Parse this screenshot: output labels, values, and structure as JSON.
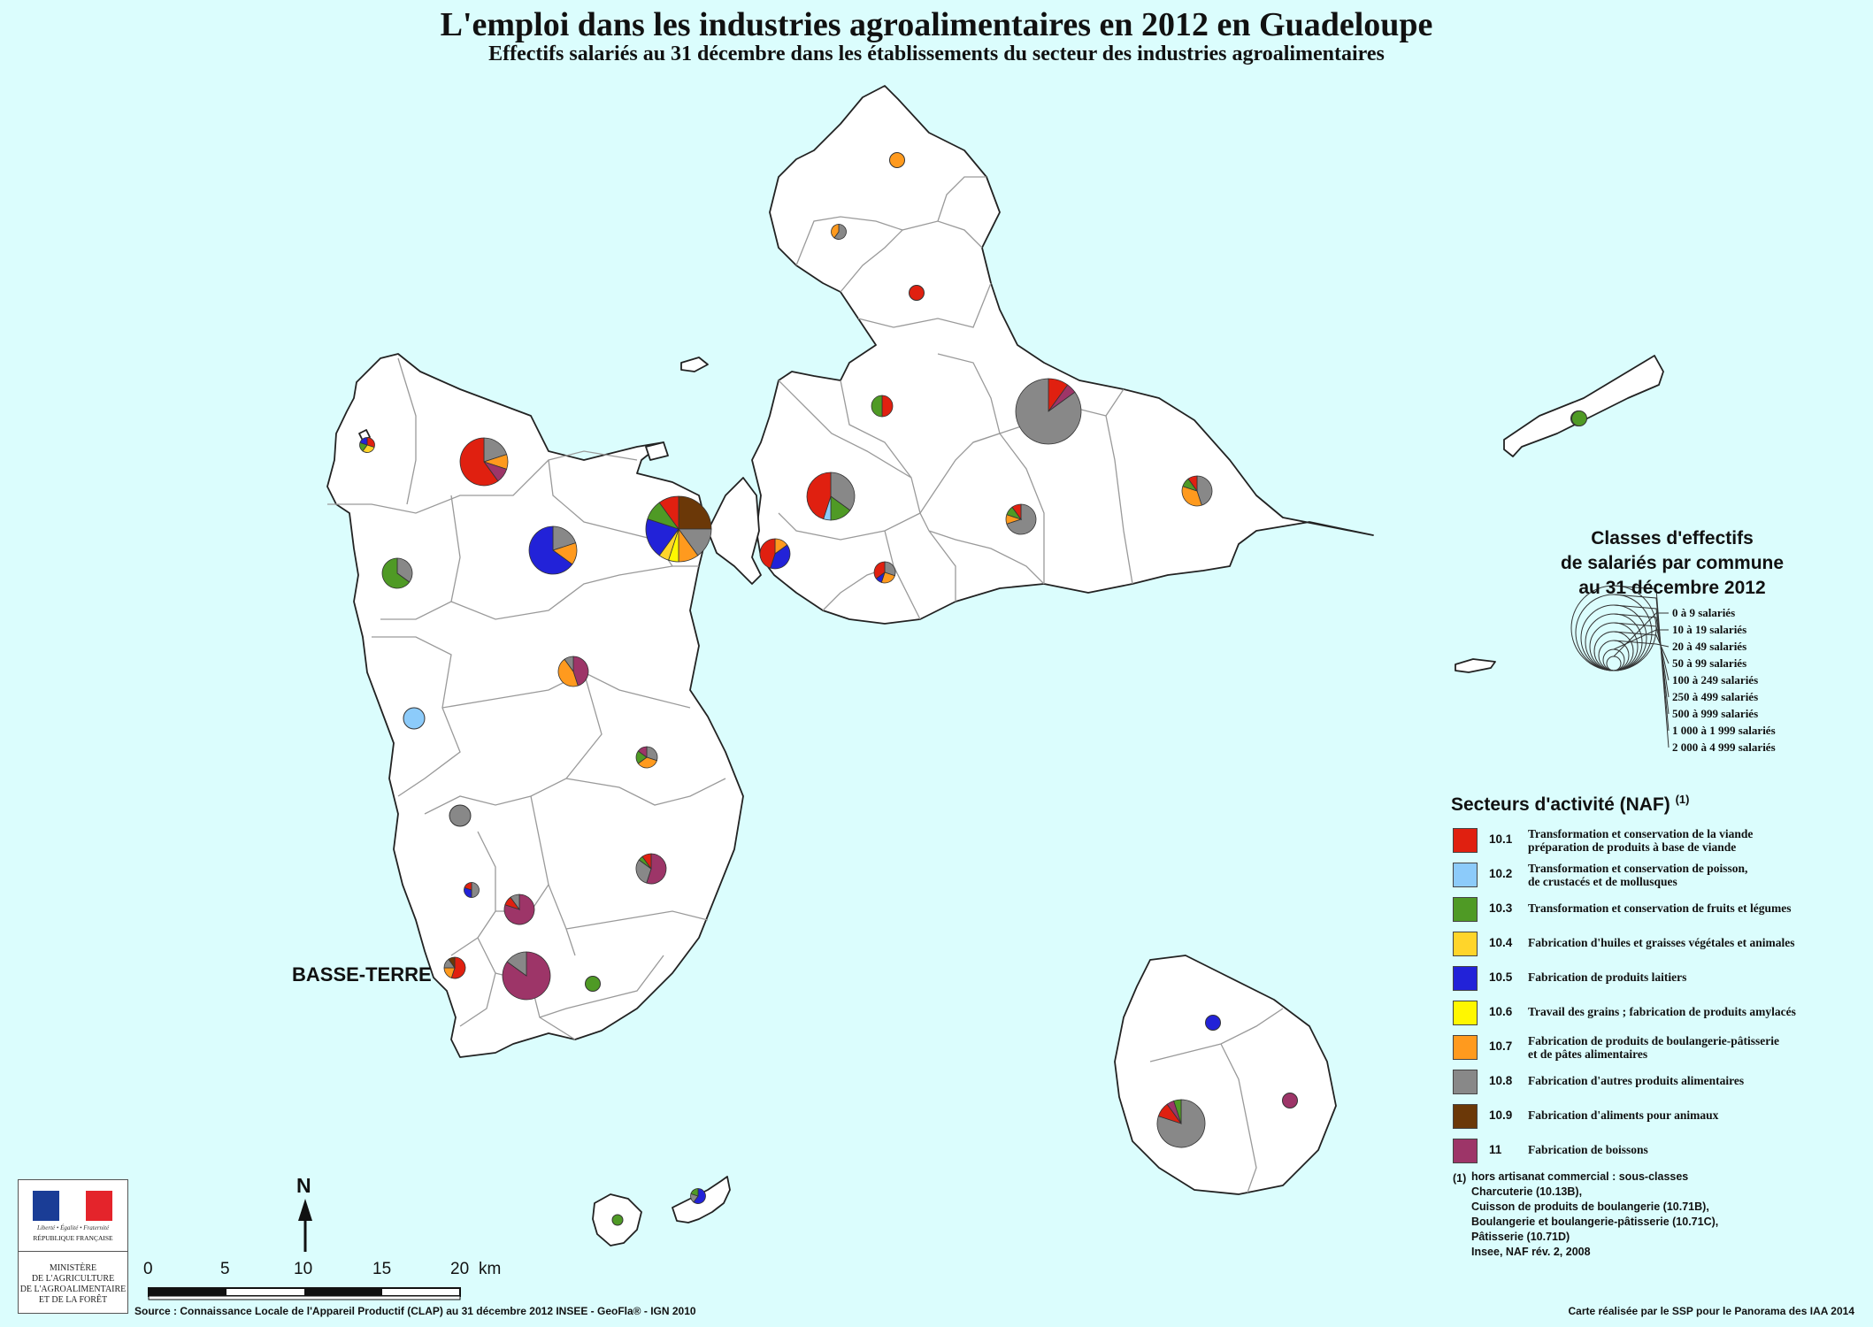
{
  "title": "L'emploi dans les industries agroalimentaires en 2012 en Guadeloupe",
  "subtitle": "Effectifs salariés au 31 décembre  dans les établissements du secteur des industries agroalimentaires",
  "place_label": "BASSE-TERRE",
  "size_legend": {
    "title_lines": [
      "Classes d'effectifs",
      "de salariés par commune",
      "au 31 décembre 2012"
    ],
    "classes": [
      "0 à 9 salariés",
      "10 à 19 salariés",
      "20 à 49 salariés",
      "50 à 99 salariés",
      "100 à 249 salariés",
      "250 à 499 salariés",
      "500 à 999 salariés",
      "1 000 à 1 999 salariés",
      "2 000 à 4 999 salariés"
    ]
  },
  "sector_legend": {
    "title": "Secteurs d'activité (NAF)",
    "title_note": "(1)",
    "items": [
      {
        "code": "10.1",
        "label": "Transformation et conservation de la viande\npréparation de produits à base de viande",
        "color": "#e02010"
      },
      {
        "code": "10.2",
        "label": "Transformation et conservation de poisson,\nde crustacés et de mollusques",
        "color": "#8ccbfa"
      },
      {
        "code": "10.3",
        "label": "Transformation et conservation de fruits et légumes",
        "color": "#4f9a25"
      },
      {
        "code": "10.4",
        "label": "Fabrication d'huiles et graisses végétales et animales",
        "color": "#ffd52a"
      },
      {
        "code": "10.5",
        "label": "Fabrication de produits laitiers",
        "color": "#2222d8"
      },
      {
        "code": "10.6",
        "label": "Travail des grains ; fabrication de produits amylacés",
        "color": "#fff700"
      },
      {
        "code": "10.7",
        "label": "Fabrication de produits de boulangerie-pâtisserie\net de pâtes alimentaires",
        "color": "#ff9a1e"
      },
      {
        "code": "10.8",
        "label": "Fabrication d'autres produits alimentaires",
        "color": "#888888"
      },
      {
        "code": "10.9",
        "label": "Fabrication d'aliments pour animaux",
        "color": "#6b3808"
      },
      {
        "code": "11",
        "label": "Fabrication de boissons",
        "color": "#9d3568"
      }
    ]
  },
  "footnote": {
    "mark": "(1)",
    "lines": [
      "hors artisanat commercial : sous-classes",
      "Charcuterie (10.13B),",
      "Cuisson de produits de boulangerie (10.71B),",
      "Boulangerie et boulangerie-pâtisserie (10.71C),",
      "Pâtisserie (10.71D)",
      "Insee, NAF rév. 2, 2008"
    ]
  },
  "north": "N",
  "scale": {
    "ticks": [
      "0",
      "5",
      "10",
      "15",
      "20"
    ],
    "unit": "km"
  },
  "logo": {
    "motto": "Liberté • Égalité • Fraternité",
    "republic": "RÉPUBLIQUE FRANÇAISE",
    "ministry": "MINISTÈRE\nDE L'AGRICULTURE\nDE L'AGROALIMENTAIRE\nET DE LA FORÊT"
  },
  "source": "Source : Connaissance Locale de l'Appareil Productif (CLAP) au 31 décembre 2012  INSEE - GeoFla® - IGN 2010",
  "credit": "Carte réalisée par le SSP pour le Panorama des IAA 2014",
  "pies": [
    {
      "name": "pie-anse-bertrand",
      "size_class": 1,
      "slices": [
        {
          "s": "10.7",
          "v": 1
        }
      ]
    },
    {
      "name": "pie-port-louis",
      "size_class": 1,
      "slices": [
        {
          "s": "10.8",
          "v": 0.6
        },
        {
          "s": "10.7",
          "v": 0.4
        }
      ]
    },
    {
      "name": "pie-petit-canal",
      "size_class": 1,
      "slices": [
        {
          "s": "10.1",
          "v": 1
        }
      ]
    },
    {
      "name": "pie-morne-a-leau",
      "size_class": 2,
      "slices": [
        {
          "s": "10.1",
          "v": 0.5
        },
        {
          "s": "10.3",
          "v": 0.5
        }
      ]
    },
    {
      "name": "pie-le-moule",
      "size_class": 5,
      "slices": [
        {
          "s": "10.1",
          "v": 0.1
        },
        {
          "s": "11",
          "v": 0.05
        },
        {
          "s": "10.8",
          "v": 0.85
        }
      ]
    },
    {
      "name": "pie-les-abymes",
      "size_class": 4,
      "slices": [
        {
          "s": "10.8",
          "v": 0.35
        },
        {
          "s": "10.3",
          "v": 0.15
        },
        {
          "s": "10.2",
          "v": 0.05
        },
        {
          "s": "10.1",
          "v": 0.45
        }
      ]
    },
    {
      "name": "pie-pointe-a-pitre",
      "size_class": 3,
      "slices": [
        {
          "s": "10.7",
          "v": 0.15
        },
        {
          "s": "10.5",
          "v": 0.4
        },
        {
          "s": "10.1",
          "v": 0.45
        }
      ]
    },
    {
      "name": "pie-morne-a-leau-sud",
      "size_class": 2,
      "slices": [
        {
          "s": "10.8",
          "v": 0.3
        },
        {
          "s": "10.7",
          "v": 0.25
        },
        {
          "s": "10.5",
          "v": 0.1
        },
        {
          "s": "10.1",
          "v": 0.35
        }
      ]
    },
    {
      "name": "pie-le-gosier",
      "size_class": 3,
      "slices": [
        {
          "s": "10.8",
          "v": 0.7
        },
        {
          "s": "10.7",
          "v": 0.1
        },
        {
          "s": "10.3",
          "v": 0.1
        },
        {
          "s": "10.1",
          "v": 0.1
        }
      ]
    },
    {
      "name": "pie-sainte-anne",
      "size_class": 3,
      "slices": [
        {
          "s": "10.8",
          "v": 0.45
        },
        {
          "s": "10.7",
          "v": 0.35
        },
        {
          "s": "10.3",
          "v": 0.1
        },
        {
          "s": "10.1",
          "v": 0.1
        }
      ]
    },
    {
      "name": "pie-saint-francois",
      "size_class": 1,
      "slices": [
        {
          "s": "10.3",
          "v": 1
        }
      ]
    },
    {
      "name": "pie-baie-mahault",
      "size_class": 5,
      "slices": [
        {
          "s": "10.9",
          "v": 0.25
        },
        {
          "s": "10.8",
          "v": 0.15
        },
        {
          "s": "10.7",
          "v": 0.1
        },
        {
          "s": "10.6",
          "v": 0.05
        },
        {
          "s": "10.4",
          "v": 0.05
        },
        {
          "s": "10.5",
          "v": 0.2
        },
        {
          "s": "10.3",
          "v": 0.1
        },
        {
          "s": "10.1",
          "v": 0.1
        }
      ]
    },
    {
      "name": "pie-sainte-rose",
      "size_class": 4,
      "slices": [
        {
          "s": "10.8",
          "v": 0.2
        },
        {
          "s": "10.7",
          "v": 0.1
        },
        {
          "s": "11",
          "v": 0.1
        },
        {
          "s": "10.1",
          "v": 0.6
        }
      ]
    },
    {
      "name": "pie-deshaies",
      "size_class": 1,
      "slices": [
        {
          "s": "10.1",
          "v": 0.3
        },
        {
          "s": "10.4",
          "v": 0.3
        },
        {
          "s": "10.3",
          "v": 0.2
        },
        {
          "s": "10.5",
          "v": 0.2
        }
      ]
    },
    {
      "name": "pie-lamentin",
      "size_class": 4,
      "slices": [
        {
          "s": "10.8",
          "v": 0.2
        },
        {
          "s": "10.7",
          "v": 0.15
        },
        {
          "s": "10.5",
          "v": 0.65
        }
      ]
    },
    {
      "name": "pie-pointe-noire",
      "size_class": 3,
      "slices": [
        {
          "s": "10.8",
          "v": 0.35
        },
        {
          "s": "10.3",
          "v": 0.65
        }
      ]
    },
    {
      "name": "pie-petit-bourg",
      "size_class": 3,
      "slices": [
        {
          "s": "11",
          "v": 0.45
        },
        {
          "s": "10.7",
          "v": 0.45
        },
        {
          "s": "10.8",
          "v": 0.1
        }
      ]
    },
    {
      "name": "pie-bouillante",
      "size_class": 2,
      "slices": [
        {
          "s": "10.2",
          "v": 1
        }
      ]
    },
    {
      "name": "pie-goyave",
      "size_class": 2,
      "slices": [
        {
          "s": "10.8",
          "v": 0.3
        },
        {
          "s": "10.7",
          "v": 0.35
        },
        {
          "s": "10.3",
          "v": 0.2
        },
        {
          "s": "11",
          "v": 0.15
        }
      ]
    },
    {
      "name": "pie-vieux-habitants",
      "size_class": 2,
      "slices": [
        {
          "s": "10.8",
          "v": 1
        }
      ]
    },
    {
      "name": "pie-capesterre",
      "size_class": 3,
      "slices": [
        {
          "s": "11",
          "v": 0.55
        },
        {
          "s": "10.8",
          "v": 0.3
        },
        {
          "s": "10.3",
          "v": 0.05
        },
        {
          "s": "10.1",
          "v": 0.1
        }
      ]
    },
    {
      "name": "pie-baillif",
      "size_class": 1,
      "slices": [
        {
          "s": "10.8",
          "v": 0.5
        },
        {
          "s": "10.5",
          "v": 0.3
        },
        {
          "s": "10.1",
          "v": 0.2
        }
      ]
    },
    {
      "name": "pie-saint-claude",
      "size_class": 3,
      "slices": [
        {
          "s": "11",
          "v": 0.8
        },
        {
          "s": "10.1",
          "v": 0.1
        },
        {
          "s": "10.8",
          "v": 0.1
        }
      ]
    },
    {
      "name": "pie-basse-terre",
      "size_class": 2,
      "slices": [
        {
          "s": "10.1",
          "v": 0.55
        },
        {
          "s": "10.7",
          "v": 0.2
        },
        {
          "s": "10.8",
          "v": 0.15
        },
        {
          "s": "10.9",
          "v": 0.1
        }
      ]
    },
    {
      "name": "pie-gourbeyre",
      "size_class": 4,
      "slices": [
        {
          "s": "11",
          "v": 0.85
        },
        {
          "s": "10.8",
          "v": 0.15
        }
      ]
    },
    {
      "name": "pie-trois-rivieres",
      "size_class": 1,
      "slices": [
        {
          "s": "10.3",
          "v": 1
        }
      ]
    },
    {
      "name": "pie-la-desirade",
      "size_class": 1,
      "slices": [
        {
          "s": "10.3",
          "v": 1
        }
      ]
    },
    {
      "name": "pie-capesterre-mg",
      "size_class": 1,
      "slices": [
        {
          "s": "10.5",
          "v": 1
        }
      ]
    },
    {
      "name": "pie-grand-bourg",
      "size_class": 4,
      "slices": [
        {
          "s": "10.8",
          "v": 0.8
        },
        {
          "s": "10.1",
          "v": 0.1
        },
        {
          "s": "11",
          "v": 0.05
        },
        {
          "s": "10.3",
          "v": 0.05
        }
      ]
    },
    {
      "name": "pie-saint-louis",
      "size_class": 1,
      "slices": [
        {
          "s": "11",
          "v": 1
        }
      ]
    },
    {
      "name": "pie-terre-de-bas",
      "size_class": 0,
      "slices": [
        {
          "s": "10.3",
          "v": 1
        }
      ]
    },
    {
      "name": "pie-terre-de-haut",
      "size_class": 1,
      "slices": [
        {
          "s": "10.5",
          "v": 0.6
        },
        {
          "s": "10.8",
          "v": 0.2
        },
        {
          "s": "10.3",
          "v": 0.2
        }
      ]
    }
  ]
}
